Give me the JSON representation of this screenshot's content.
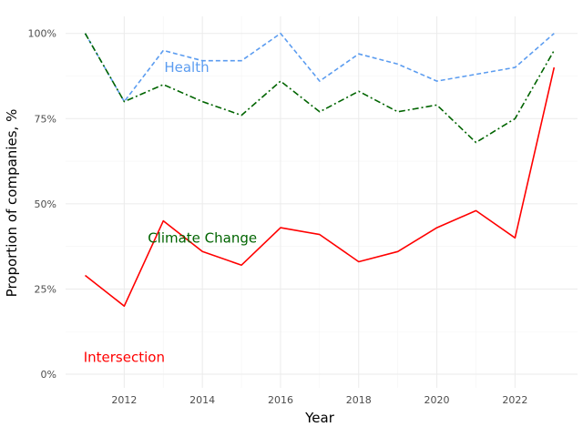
{
  "chart_data": {
    "type": "line",
    "xlabel": "Year",
    "ylabel": "Proportion of companies, %",
    "xlim": [
      2010.5,
      2023.6
    ],
    "ylim": [
      -0.04,
      1.05
    ],
    "x_ticks": [
      2012,
      2014,
      2016,
      2018,
      2020,
      2022
    ],
    "x_tick_labels": [
      "2012",
      "2014",
      "2016",
      "2018",
      "2020",
      "2022"
    ],
    "y_ticks": [
      0,
      0.25,
      0.5,
      0.75,
      1.0
    ],
    "y_tick_labels": [
      "0%",
      "25%",
      "50%",
      "75%",
      "100%"
    ],
    "grid": true,
    "x": [
      2011,
      2012,
      2013,
      2014,
      2015,
      2016,
      2017,
      2018,
      2019,
      2020,
      2021,
      2022,
      2023
    ],
    "series": [
      {
        "name": "Health",
        "color": "#5b9cf0",
        "dash": "dashed",
        "values": [
          1.0,
          0.8,
          0.95,
          0.92,
          0.92,
          1.0,
          0.86,
          0.94,
          0.91,
          0.86,
          0.88,
          0.9,
          1.0
        ]
      },
      {
        "name": "Climate Change",
        "color": "#006400",
        "dash": "dashdot",
        "values": [
          1.0,
          0.8,
          0.85,
          0.8,
          0.76,
          0.86,
          0.77,
          0.83,
          0.77,
          0.79,
          0.68,
          0.75,
          0.95
        ]
      },
      {
        "name": "Intersection",
        "color": "#ff0000",
        "dash": "solid",
        "values": [
          0.29,
          0.2,
          0.45,
          0.36,
          0.32,
          0.43,
          0.41,
          0.33,
          0.36,
          0.43,
          0.48,
          0.4,
          0.9
        ]
      }
    ],
    "annotations": [
      {
        "text": "Health",
        "x": 2013.6,
        "y": 0.9,
        "color": "#5b9cf0"
      },
      {
        "text": "Climate Change",
        "x": 2014.0,
        "y": 0.4,
        "color": "#006400"
      },
      {
        "text": "Intersection",
        "x": 2012.0,
        "y": 0.05,
        "color": "#ff0000"
      }
    ]
  }
}
